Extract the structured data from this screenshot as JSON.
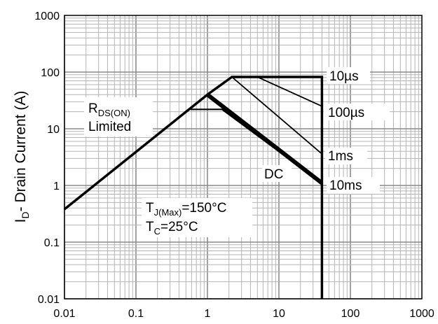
{
  "chart_data": {
    "type": "line",
    "title": "",
    "xlabel": "",
    "ylabel": {
      "main": "I",
      "sub": "D",
      "rest": "- Drain Current (A)"
    },
    "xscale": "log",
    "yscale": "log",
    "xlim": [
      0.01,
      1000
    ],
    "ylim": [
      0.01,
      1000
    ],
    "grid": true,
    "x_ticks": [
      "0.01",
      "0.1",
      "1",
      "10",
      "100",
      "1000"
    ],
    "y_ticks": [
      "0.01",
      "0.1",
      "1",
      "10",
      "100",
      "1000"
    ],
    "series": [
      {
        "x": [
          0.01,
          1.0
        ],
        "y": [
          0.38,
          40
        ],
        "width": 3.5
      },
      {
        "x": [
          1.0,
          2.2,
          40,
          40
        ],
        "y": [
          40,
          82,
          82,
          0.01
        ],
        "width": 3.5
      },
      {
        "x": [
          5,
          40
        ],
        "y": [
          82,
          25
        ],
        "width": 1.8
      },
      {
        "x": [
          2.2,
          40
        ],
        "y": [
          82,
          3.6
        ],
        "width": 1.8
      },
      {
        "x": [
          0.58,
          1.6,
          40
        ],
        "y": [
          22,
          22,
          1.1
        ],
        "width": 2.2
      },
      {
        "x": [
          1.0,
          40
        ],
        "y": [
          40,
          1.1
        ],
        "width": 6
      }
    ],
    "annotations": [
      {
        "text": "10µs"
      },
      {
        "text": "100µs"
      },
      {
        "text": "1ms"
      },
      {
        "text": "10ms"
      },
      {
        "text": "DC"
      },
      {
        "main": "R",
        "sub": "DS(ON)"
      },
      {
        "text": "Limited"
      },
      {
        "main": "T",
        "sub": "J(Max)",
        "rest": "=150°C"
      },
      {
        "main": "T",
        "sub": "C",
        "rest": "=25°C"
      }
    ]
  }
}
